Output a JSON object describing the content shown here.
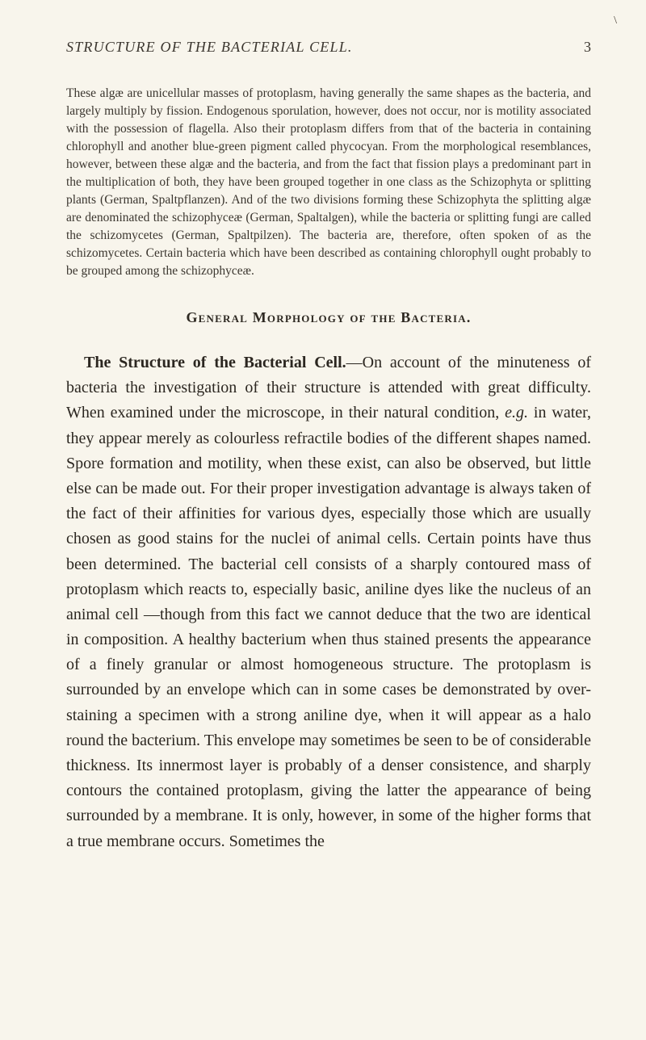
{
  "page": {
    "corner_mark": "\\",
    "running_title": "STRUCTURE OF THE BACTERIAL CELL.",
    "page_number": "3"
  },
  "intro": {
    "text": "These algæ are unicellular masses of protoplasm, having generally the same shapes as the bacteria, and largely multiply by fission. Endogenous sporulation, however, does not occur, nor is motility associated with the possession of flagella. Also their protoplasm differs from that of the bacteria in containing chlorophyll and another blue-green pigment called phycocyan. From the morphological resemblances, however, between these algæ and the bacteria, and from the fact that fission plays a predominant part in the multiplication of both, they have been grouped together in one class as the Schizophyta or splitting plants (German, Spaltpflanzen). And of the two divisions forming these Schizophyta the splitting algæ are denominated the schizophyceæ (German, Spaltalgen), while the bacteria or splitting fungi are called the schizomycetes (German, Spaltpilzen). The bacteria are, therefore, often spoken of as the schizomycetes. Certain bacteria which have been described as containing chlorophyll ought probably to be grouped among the schizophyceæ."
  },
  "section": {
    "heading": "General Morphology of the Bacteria."
  },
  "body": {
    "title": "The Structure of the Bacterial Cell.",
    "text_before_eg": "—On account of the minuteness of bacteria the investigation of their structure is attended with great difficulty. When examined under the microscope, in their natural condition, ",
    "eg": "e.g.",
    "text_after_eg": " in water, they appear merely as colourless refractile bodies of the different shapes named. Spore formation and motility, when these exist, can also be observed, but little else can be made out. For their proper investigation advantage is always taken of the fact of their affinities for various dyes, especially those which are usually chosen as good stains for the nuclei of animal cells. Certain points have thus been determined. The bacterial cell consists of a sharply contoured mass of protoplasm which reacts to, especially basic, aniline dyes like the nucleus of an animal cell —though from this fact we cannot deduce that the two are identical in composition. A healthy bacterium when thus stained presents the appearance of a finely granular or almost homogeneous structure. The protoplasm is surrounded by an envelope which can in some cases be demonstrated by over-staining a specimen with a strong aniline dye, when it will appear as a halo round the bacterium. This envelope may sometimes be seen to be of considerable thickness. Its innermost layer is probably of a denser consistence, and sharply contours the contained protoplasm, giving the latter the appearance of being surrounded by a membrane. It is only, however, in some of the higher forms that a true membrane occurs. Sometimes the"
  }
}
